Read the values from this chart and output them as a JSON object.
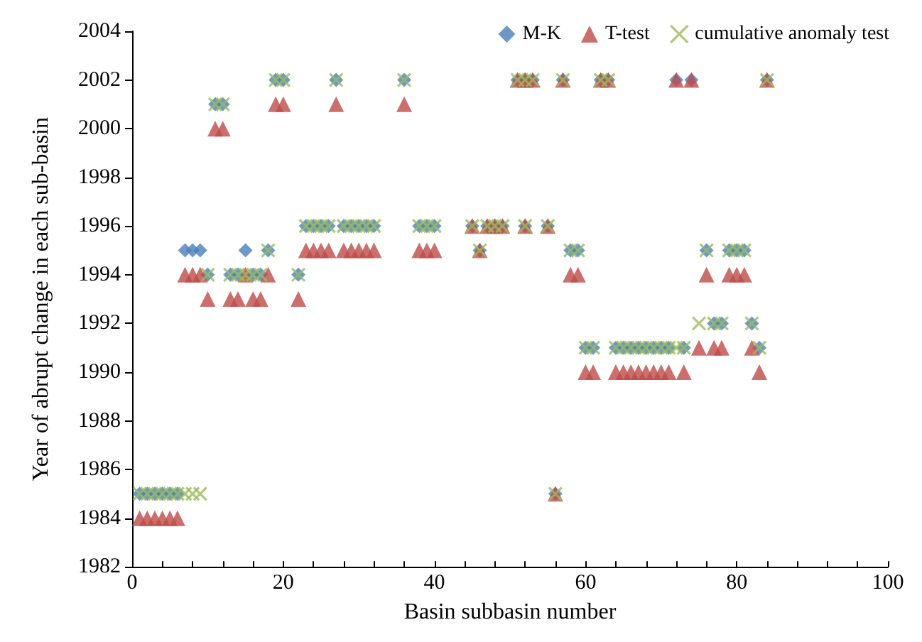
{
  "chart_data": {
    "type": "scatter",
    "xlabel": "Basin subbasin number",
    "ylabel": "Year of abrupt change in each sub-basin",
    "xlim": [
      0,
      100
    ],
    "xticks": [
      0,
      {
        "value": 4,
        "label": null
      },
      {
        "value": 8,
        "label": null
      },
      {
        "value": 12,
        "label": null
      },
      {
        "value": 16,
        "label": null
      },
      20,
      {
        "value": 24,
        "label": null
      },
      {
        "value": 28,
        "label": null
      },
      {
        "value": 32,
        "label": null
      },
      {
        "value": 36,
        "label": null
      },
      40,
      {
        "value": 44,
        "label": null
      },
      {
        "value": 48,
        "label": null
      },
      {
        "value": 52,
        "label": null
      },
      {
        "value": 56,
        "label": null
      },
      60,
      {
        "value": 64,
        "label": null
      },
      {
        "value": 68,
        "label": null
      },
      {
        "value": 72,
        "label": null
      },
      {
        "value": 76,
        "label": null
      },
      80,
      {
        "value": 84,
        "label": null
      },
      {
        "value": 88,
        "label": null
      },
      {
        "value": 92,
        "label": null
      },
      {
        "value": 96,
        "label": null
      },
      100
    ],
    "ylim": [
      1982,
      2004
    ],
    "yticks": [
      1982,
      1984,
      1986,
      1988,
      1990,
      1992,
      1994,
      1996,
      1998,
      2000,
      2002,
      2004
    ],
    "grid": false,
    "legend": "top right",
    "series": [
      {
        "name": "M-K",
        "color": "#4a7ebb",
        "marker": "diamond",
        "x": [
          1,
          2,
          3,
          4,
          5,
          6,
          7,
          8,
          9,
          10,
          11,
          12,
          13,
          14,
          15,
          16,
          17,
          18,
          19,
          20,
          22,
          23,
          24,
          25,
          26,
          27,
          28,
          29,
          30,
          31,
          32,
          36,
          38,
          39,
          40,
          45,
          46,
          47,
          48,
          49,
          51,
          52,
          53,
          52,
          55,
          56,
          57,
          58,
          59,
          60,
          61,
          62,
          63,
          64,
          65,
          66,
          67,
          68,
          69,
          70,
          71,
          72,
          73,
          74,
          76,
          77,
          78,
          79,
          80,
          81,
          82,
          83,
          84
        ],
        "values": [
          1985,
          1985,
          1985,
          1985,
          1985,
          1985,
          1995,
          1995,
          1995,
          1994,
          2001,
          2001,
          1994,
          1994,
          1995,
          1994,
          1994,
          1995,
          2002,
          2002,
          1994,
          1996,
          1996,
          1996,
          1996,
          2002,
          1996,
          1996,
          1996,
          1996,
          1996,
          2002,
          1996,
          1996,
          1996,
          1996,
          1995,
          1996,
          1996,
          1996,
          2002,
          2002,
          2002,
          1996,
          1996,
          1985,
          2002,
          1995,
          1995,
          1991,
          1991,
          2002,
          2002,
          1991,
          1991,
          1991,
          1991,
          1991,
          1991,
          1991,
          1991,
          2002,
          1991,
          2002,
          1995,
          1992,
          1992,
          1995,
          1995,
          1995,
          1992,
          1991,
          2002
        ]
      },
      {
        "name": "T-test",
        "color": "#be4b48",
        "marker": "triangle",
        "x": [
          1,
          2,
          3,
          4,
          5,
          6,
          7,
          8,
          9,
          10,
          11,
          12,
          13,
          14,
          15,
          16,
          17,
          18,
          19,
          20,
          22,
          23,
          24,
          25,
          26,
          27,
          28,
          29,
          30,
          31,
          32,
          36,
          38,
          39,
          40,
          45,
          46,
          47,
          48,
          49,
          51,
          52,
          53,
          52,
          55,
          56,
          57,
          58,
          59,
          60,
          61,
          62,
          63,
          64,
          65,
          66,
          67,
          68,
          69,
          70,
          71,
          72,
          73,
          74,
          75,
          76,
          77,
          78,
          79,
          80,
          81,
          82,
          83,
          84
        ],
        "values": [
          1984,
          1984,
          1984,
          1984,
          1984,
          1984,
          1994,
          1994,
          1994,
          1993,
          2000,
          2000,
          1993,
          1993,
          1994,
          1993,
          1993,
          1994,
          2001,
          2001,
          1993,
          1995,
          1995,
          1995,
          1995,
          2001,
          1995,
          1995,
          1995,
          1995,
          1995,
          2001,
          1995,
          1995,
          1995,
          1996,
          1995,
          1996,
          1996,
          1996,
          2002,
          2002,
          2002,
          1996,
          1996,
          1985,
          2002,
          1994,
          1994,
          1990,
          1990,
          2002,
          2002,
          1990,
          1990,
          1990,
          1990,
          1990,
          1990,
          1990,
          1990,
          2002,
          1990,
          2002,
          1991,
          1994,
          1991,
          1991,
          1994,
          1994,
          1994,
          1991,
          1990,
          2002
        ]
      },
      {
        "name": "cumulative anomaly test",
        "color": "#9bbb59",
        "marker": "cross",
        "x": [
          1,
          2,
          3,
          4,
          5,
          6,
          7,
          8,
          9,
          10,
          11,
          12,
          13,
          14,
          15,
          16,
          17,
          18,
          19,
          20,
          22,
          23,
          24,
          25,
          26,
          27,
          28,
          29,
          30,
          31,
          32,
          36,
          38,
          39,
          40,
          45,
          46,
          47,
          48,
          49,
          51,
          52,
          53,
          52,
          55,
          56,
          57,
          58,
          59,
          60,
          61,
          62,
          63,
          64,
          65,
          66,
          67,
          68,
          69,
          70,
          71,
          72,
          73,
          75,
          76,
          77,
          78,
          79,
          80,
          81,
          82,
          83,
          84
        ],
        "values": [
          1985,
          1985,
          1985,
          1985,
          1985,
          1985,
          1985,
          1985,
          1985,
          1994,
          2001,
          2001,
          1994,
          1994,
          1994,
          1994,
          1994,
          1995,
          2002,
          2002,
          1994,
          1996,
          1996,
          1996,
          1996,
          2002,
          1996,
          1996,
          1996,
          1996,
          1996,
          2002,
          1996,
          1996,
          1996,
          1996,
          1995,
          1996,
          1996,
          1996,
          2002,
          2002,
          2002,
          1996,
          1996,
          1985,
          2002,
          1995,
          1995,
          1991,
          1991,
          2002,
          2002,
          1991,
          1991,
          1991,
          1991,
          1991,
          1991,
          1991,
          1991,
          1991,
          1991,
          1992,
          1995,
          1992,
          1992,
          1995,
          1995,
          1995,
          1992,
          1991,
          2002
        ]
      }
    ]
  }
}
